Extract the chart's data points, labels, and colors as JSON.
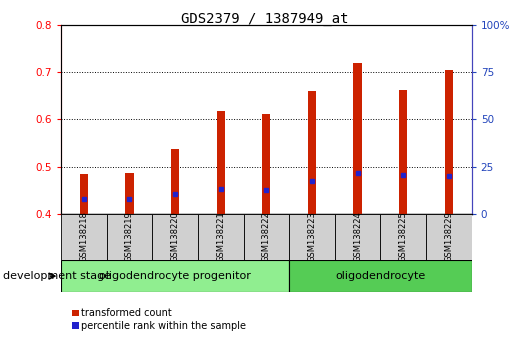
{
  "title": "GDS2379 / 1387949_at",
  "samples": [
    "GSM138218",
    "GSM138219",
    "GSM138220",
    "GSM138221",
    "GSM138222",
    "GSM138223",
    "GSM138224",
    "GSM138225",
    "GSM138229"
  ],
  "transformed_count": [
    0.485,
    0.487,
    0.538,
    0.617,
    0.612,
    0.66,
    0.72,
    0.663,
    0.705
  ],
  "percentile_rank": [
    0.432,
    0.432,
    0.443,
    0.453,
    0.451,
    0.47,
    0.487,
    0.483,
    0.481
  ],
  "ylim_left": [
    0.4,
    0.8
  ],
  "ylim_right": [
    0,
    100
  ],
  "yticks_left": [
    0.4,
    0.5,
    0.6,
    0.7,
    0.8
  ],
  "yticks_right": [
    0,
    25,
    50,
    75,
    100
  ],
  "ytick_labels_right": [
    "0",
    "25",
    "50",
    "75",
    "100%"
  ],
  "bar_color": "#cc2200",
  "percentile_color": "#2222cc",
  "stage_groups": [
    {
      "label": "oligodendrocyte progenitor",
      "start": 0,
      "end": 5,
      "color": "#90ee90"
    },
    {
      "label": "oligodendrocyte",
      "start": 5,
      "end": 9,
      "color": "#55cc55"
    }
  ],
  "legend_items": [
    {
      "label": "transformed count",
      "color": "#cc2200"
    },
    {
      "label": "percentile rank within the sample",
      "color": "#2222cc"
    }
  ],
  "stage_label": "development stage",
  "bar_width": 0.18,
  "title_fontsize": 10,
  "tick_fontsize": 7.5,
  "label_fontsize": 8,
  "stage_fontsize": 8,
  "sample_fontsize": 6,
  "legend_fontsize": 7
}
